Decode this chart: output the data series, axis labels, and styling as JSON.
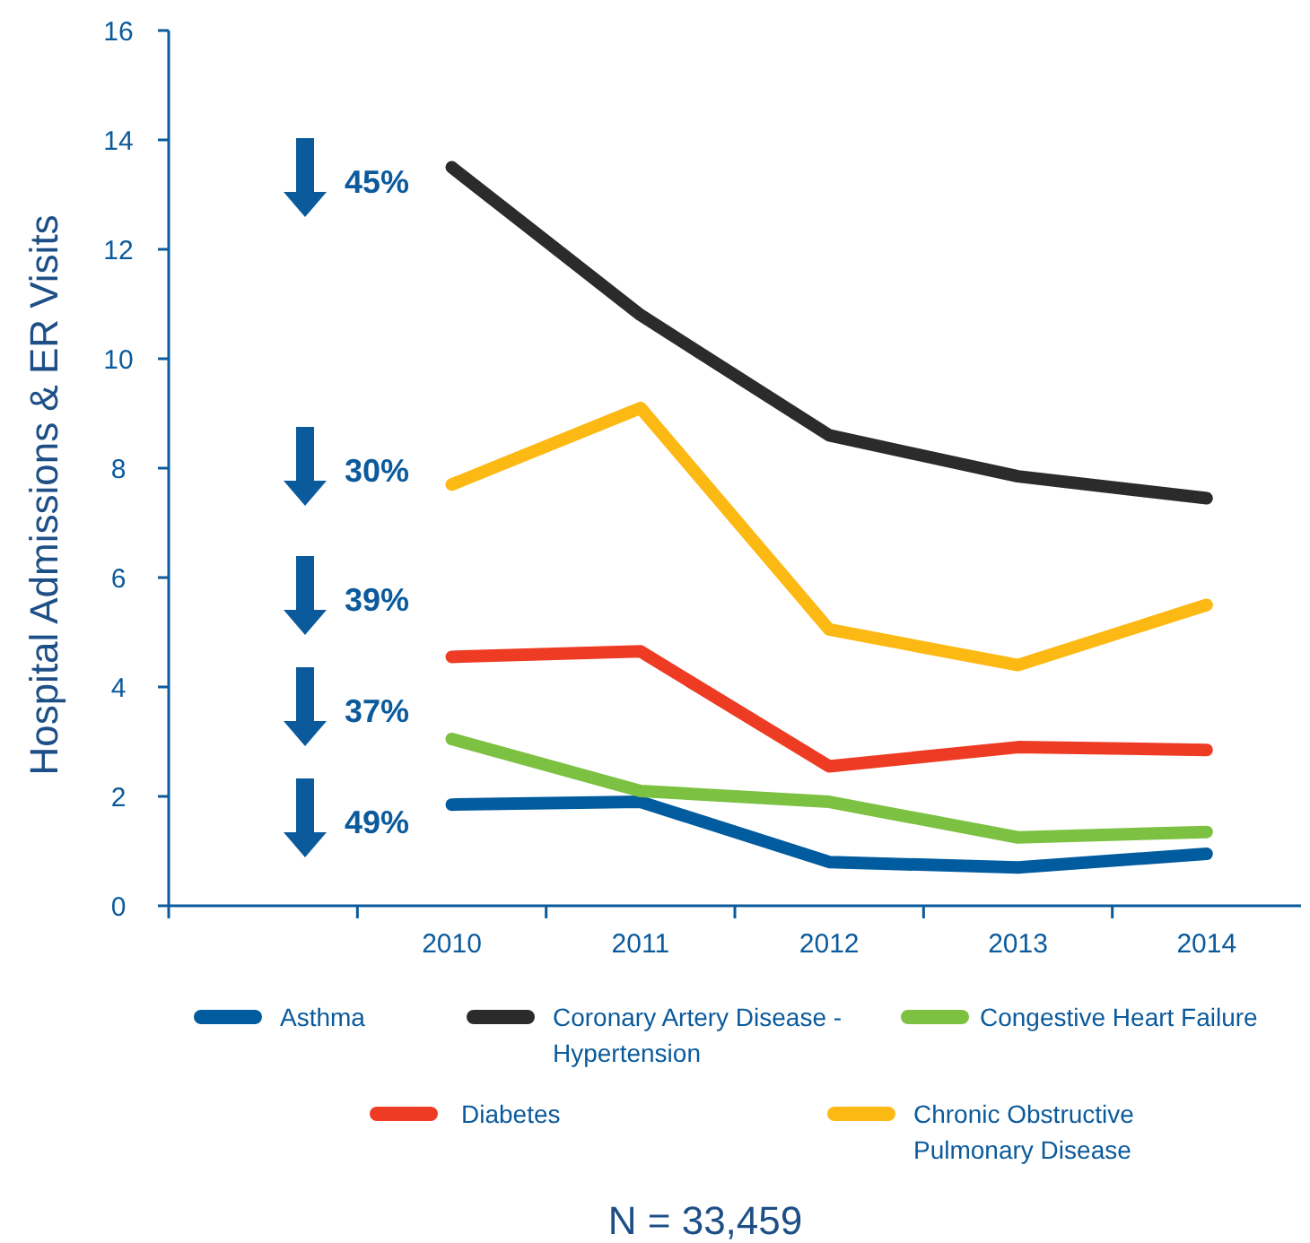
{
  "chart_data": {
    "type": "line",
    "ylabel": "Hospital Admissions & ER Visits",
    "categories": [
      null,
      "2010",
      "2011",
      "2012",
      "2013",
      "2014"
    ],
    "ylim": [
      0,
      16
    ],
    "yticks": [
      0,
      2,
      4,
      6,
      8,
      10,
      12,
      14,
      16
    ],
    "legend": "bottom",
    "line_style": "solid",
    "series": [
      {
        "name": "Asthma",
        "color": "#005b9f",
        "values": [
          null,
          1.85,
          1.9,
          0.8,
          0.7,
          0.95
        ]
      },
      {
        "name": "Coronary Artery Disease - Hypertension",
        "color": "#2b2b2b",
        "values": [
          null,
          13.5,
          10.8,
          8.6,
          7.85,
          7.45
        ]
      },
      {
        "name": "Congestive Heart Failure",
        "color": "#7cc142",
        "values": [
          null,
          3.05,
          2.1,
          1.9,
          1.25,
          1.35
        ]
      },
      {
        "name": "Diabetes",
        "color": "#ee3b24",
        "values": [
          null,
          4.55,
          4.65,
          2.55,
          2.9,
          2.85
        ]
      },
      {
        "name": "Chronic Obstructive Pulmonary Disease",
        "color": "#fdb913",
        "values": [
          null,
          7.7,
          9.1,
          5.05,
          4.4,
          5.5
        ]
      }
    ],
    "annotations": [
      "45%",
      "30%",
      "39%",
      "37%",
      "49%",
      "N = 33,459"
    ]
  }
}
